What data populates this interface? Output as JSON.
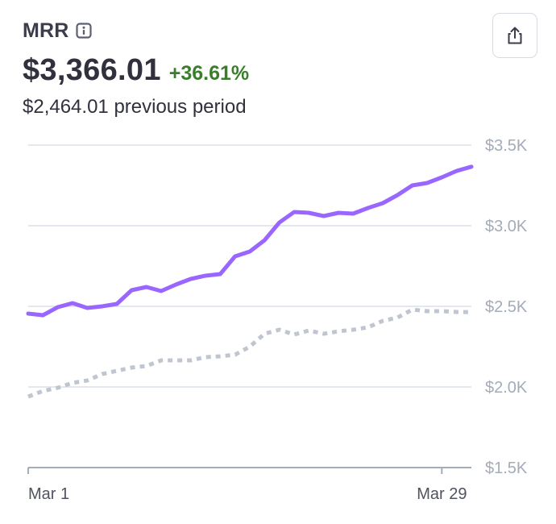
{
  "header": {
    "title": "MRR",
    "info_icon": "info-icon",
    "value": "$3,366.01",
    "delta": "+36.61%",
    "previous": "$2,464.01 previous period"
  },
  "toolbar": {
    "export_icon": "share-export-icon"
  },
  "colors": {
    "current": "#9966ff",
    "previous": "#c0c6d0",
    "delta": "#3a7d2c",
    "grid": "#e3e8ee"
  },
  "chart_data": {
    "type": "line",
    "y_tick_labels": [
      "$3.5K",
      "$3.0K",
      "$2.5K",
      "$2.0K",
      "$1.5K"
    ],
    "y_ticks": [
      3500,
      3000,
      2500,
      2000,
      1500
    ],
    "x_tick_labels": [
      "Mar 1",
      "Mar 29"
    ],
    "x_ticks": [
      1,
      29
    ],
    "ylim": [
      1500,
      3500
    ],
    "xlim": [
      1,
      31
    ],
    "grid": true,
    "series": [
      {
        "style": "solid",
        "color": "#9966ff",
        "x": [
          1,
          2,
          3,
          4,
          5,
          6,
          7,
          8,
          9,
          10,
          11,
          12,
          13,
          14,
          15,
          16,
          17,
          18,
          19,
          20,
          21,
          22,
          23,
          24,
          25,
          26,
          27,
          28,
          29,
          30,
          31
        ],
        "values": [
          2455,
          2445,
          2495,
          2520,
          2490,
          2500,
          2515,
          2600,
          2620,
          2595,
          2635,
          2670,
          2690,
          2700,
          2810,
          2840,
          2910,
          3020,
          3085,
          3080,
          3060,
          3080,
          3075,
          3110,
          3140,
          3190,
          3250,
          3265,
          3300,
          3340,
          3366
        ]
      },
      {
        "style": "dotted",
        "color": "#c0c6d0",
        "x": [
          1,
          2,
          3,
          4,
          5,
          6,
          7,
          8,
          9,
          10,
          11,
          12,
          13,
          14,
          15,
          16,
          17,
          18,
          19,
          20,
          21,
          22,
          23,
          24,
          25,
          26,
          27,
          28,
          29,
          30,
          31
        ],
        "values": [
          1940,
          1975,
          1995,
          2025,
          2040,
          2080,
          2100,
          2120,
          2130,
          2165,
          2165,
          2165,
          2185,
          2190,
          2200,
          2250,
          2330,
          2355,
          2325,
          2350,
          2330,
          2345,
          2355,
          2370,
          2410,
          2430,
          2480,
          2470,
          2470,
          2465,
          2464
        ]
      }
    ]
  }
}
